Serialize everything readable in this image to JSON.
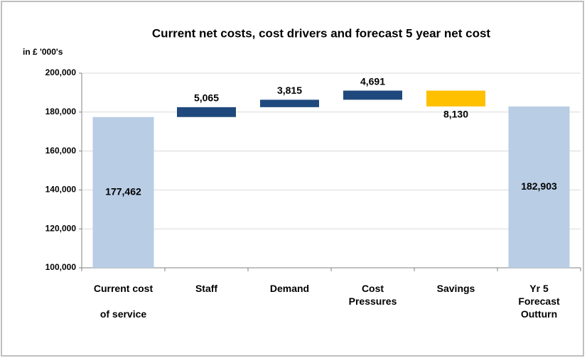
{
  "chart_data": {
    "type": "waterfall",
    "title": "Current net costs, cost drivers and forecast 5 year net cost",
    "y_axis_label": "in £ '000's",
    "categories": [
      [
        "Current cost",
        "of service"
      ],
      [
        "Staff"
      ],
      [
        "Demand"
      ],
      [
        "Cost",
        "Pressures"
      ],
      [
        "Savings"
      ],
      [
        "Yr 5",
        "Forecast",
        "Outturn"
      ]
    ],
    "values": [
      177462,
      5065,
      3815,
      4691,
      -8130,
      182903
    ],
    "value_labels": [
      "177,462",
      "5,065",
      "3,815",
      "4,691",
      "8,130",
      "182,903"
    ],
    "measure": [
      "absolute",
      "relative",
      "relative",
      "relative",
      "relative",
      "total"
    ],
    "colors": [
      "#b9cde5",
      "#1f497d",
      "#1f497d",
      "#1f497d",
      "#ffc000",
      "#b9cde5"
    ],
    "ylim": [
      100000,
      200000
    ],
    "yticks": [
      {
        "value": 100000,
        "label": "100,000"
      },
      {
        "value": 120000,
        "label": "120,000"
      },
      {
        "value": 140000,
        "label": "140,000"
      },
      {
        "value": 160000,
        "label": "160,000"
      },
      {
        "value": 180000,
        "label": "180,000"
      },
      {
        "value": 200000,
        "label": "200,000"
      }
    ],
    "grid": true
  }
}
